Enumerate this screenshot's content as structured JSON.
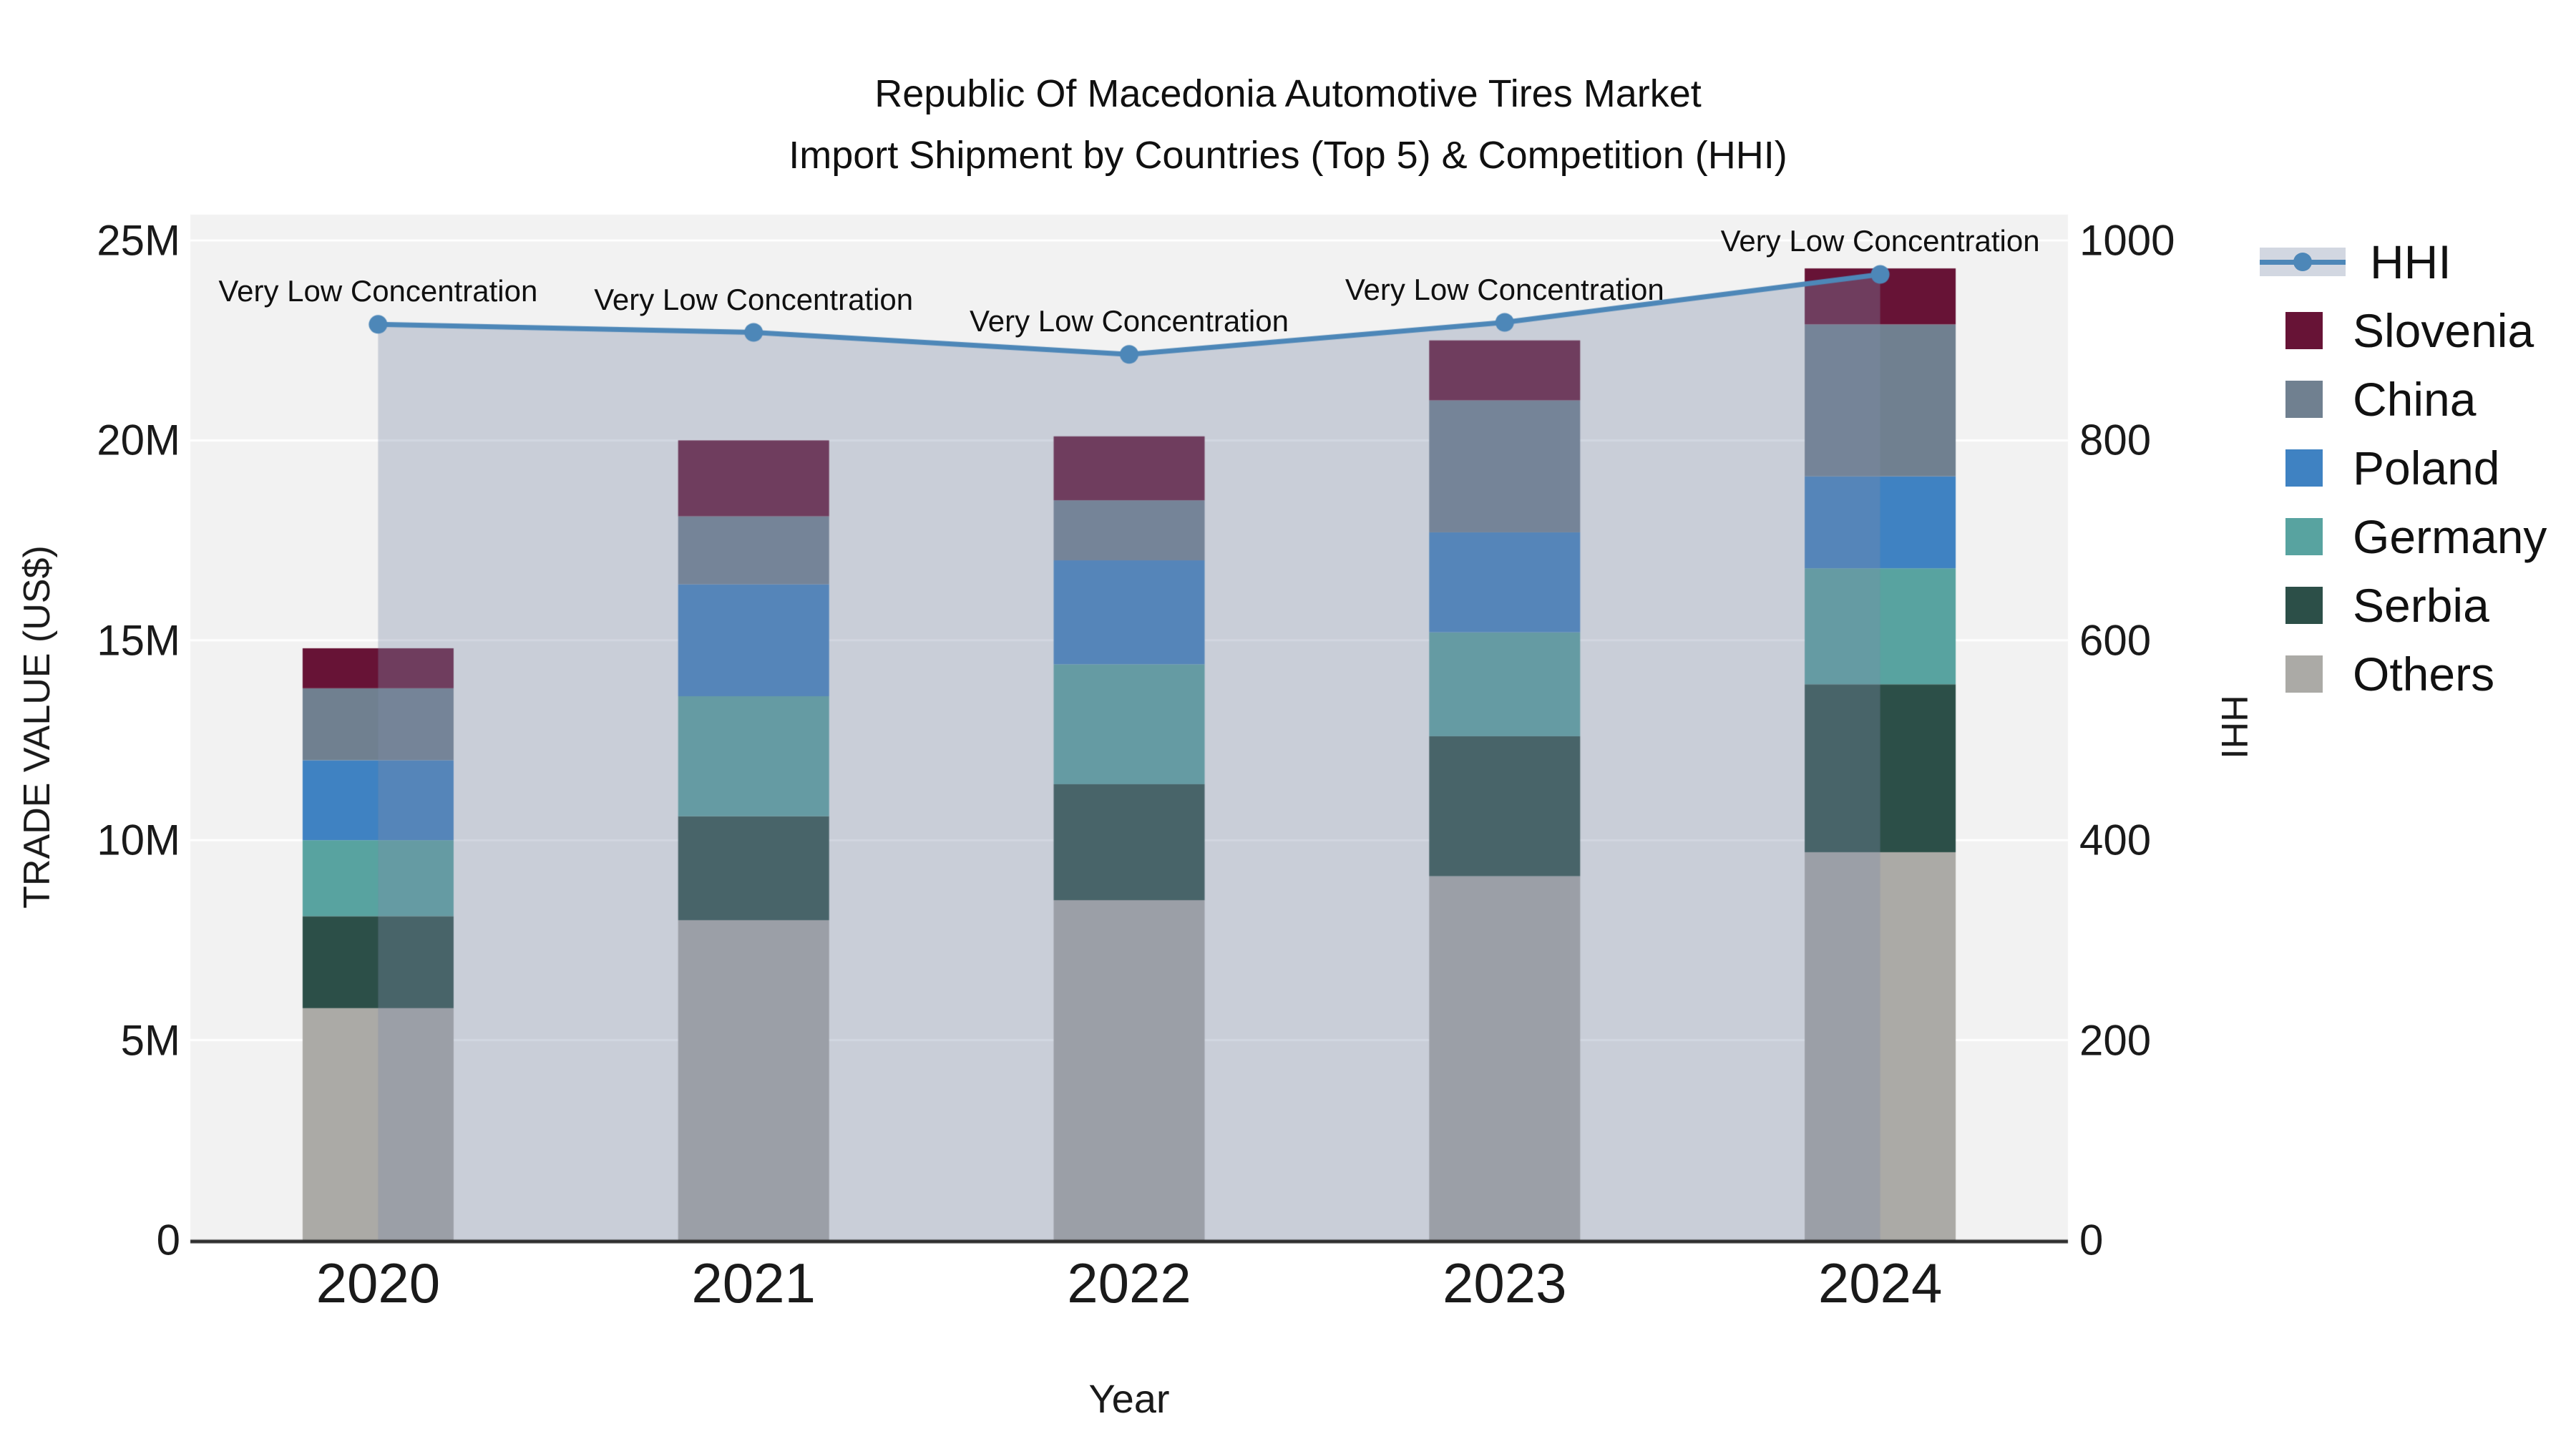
{
  "title": {
    "line1": "Republic Of Macedonia Automotive Tires Market",
    "line2": "Import Shipment by Countries (Top 5) & Competition (HHI)"
  },
  "axes": {
    "y_left": {
      "title": "TRADE VALUE (US$)",
      "tick_labels": [
        "0",
        "5M",
        "10M",
        "15M",
        "20M",
        "25M"
      ],
      "tick_values_m": [
        0,
        5,
        10,
        15,
        20,
        25
      ],
      "max_m": 25
    },
    "y_right": {
      "title": "HHI",
      "tick_labels": [
        "0",
        "200",
        "400",
        "600",
        "800",
        "1000"
      ],
      "tick_values": [
        0,
        200,
        400,
        600,
        800,
        1000
      ],
      "max": 1000
    },
    "x": {
      "title": "Year",
      "tick_labels": [
        "2020",
        "2021",
        "2022",
        "2023",
        "2024"
      ]
    }
  },
  "colors": {
    "plot_bg": "#f2f2f2",
    "gridline": "#ffffff",
    "axis_line": "#2f2f2f",
    "hhi_line": "#4d87b8",
    "area_fill_rgb": "125,139,168",
    "area_fill_alpha": 0.35,
    "slovenia": "#671336",
    "china": "#708090",
    "poland": "#3f82c2",
    "germany": "#58a3a0",
    "serbia": "#2c4f48",
    "others": "#abaaa6"
  },
  "legend": [
    {
      "label": "HHI",
      "type": "line",
      "color": "#4d87b8"
    },
    {
      "label": "Slovenia",
      "type": "swatch",
      "color": "#671336"
    },
    {
      "label": "China",
      "type": "swatch",
      "color": "#708090"
    },
    {
      "label": "Poland",
      "type": "swatch",
      "color": "#3f82c2"
    },
    {
      "label": "Germany",
      "type": "swatch",
      "color": "#58a3a0"
    },
    {
      "label": "Serbia",
      "type": "swatch",
      "color": "#2c4f48"
    },
    {
      "label": "Others",
      "type": "swatch",
      "color": "#abaaa6"
    }
  ],
  "chart_data": {
    "type": "bar",
    "stacked": true,
    "categories": [
      "2020",
      "2021",
      "2022",
      "2023",
      "2024"
    ],
    "value_unit": "million US$",
    "series": [
      {
        "name": "Others",
        "color_key": "others",
        "values": [
          5.8,
          8.0,
          8.5,
          9.1,
          9.7
        ]
      },
      {
        "name": "Serbia",
        "color_key": "serbia",
        "values": [
          2.3,
          2.6,
          2.9,
          3.5,
          4.2
        ]
      },
      {
        "name": "Germany",
        "color_key": "germany",
        "values": [
          1.9,
          3.0,
          3.0,
          2.6,
          2.9
        ]
      },
      {
        "name": "Poland",
        "color_key": "poland",
        "values": [
          2.0,
          2.8,
          2.6,
          2.5,
          2.3
        ]
      },
      {
        "name": "China",
        "color_key": "china",
        "values": [
          1.8,
          1.7,
          1.5,
          3.3,
          3.8
        ]
      },
      {
        "name": "Slovenia",
        "color_key": "slovenia",
        "values": [
          1.0,
          1.9,
          1.6,
          1.5,
          1.4
        ]
      }
    ],
    "line_series": {
      "name": "HHI",
      "axis": "right",
      "values": [
        916,
        908,
        886,
        918,
        966
      ],
      "area_under_line": true,
      "annotations": [
        "Very Low Concentration",
        "Very Low Concentration",
        "Very Low Concentration",
        "Very Low Concentration",
        "Very Low Concentration"
      ]
    },
    "title": "Republic Of Macedonia Automotive Tires Market — Import Shipment by Countries (Top 5) & Competition (HHI)",
    "xlabel": "Year",
    "ylabel_left": "TRADE VALUE (US$)",
    "ylabel_right": "HHI",
    "ylim_left_m": [
      0,
      25
    ],
    "ylim_right": [
      0,
      1000
    ],
    "grid": true,
    "legend_position": "right"
  }
}
